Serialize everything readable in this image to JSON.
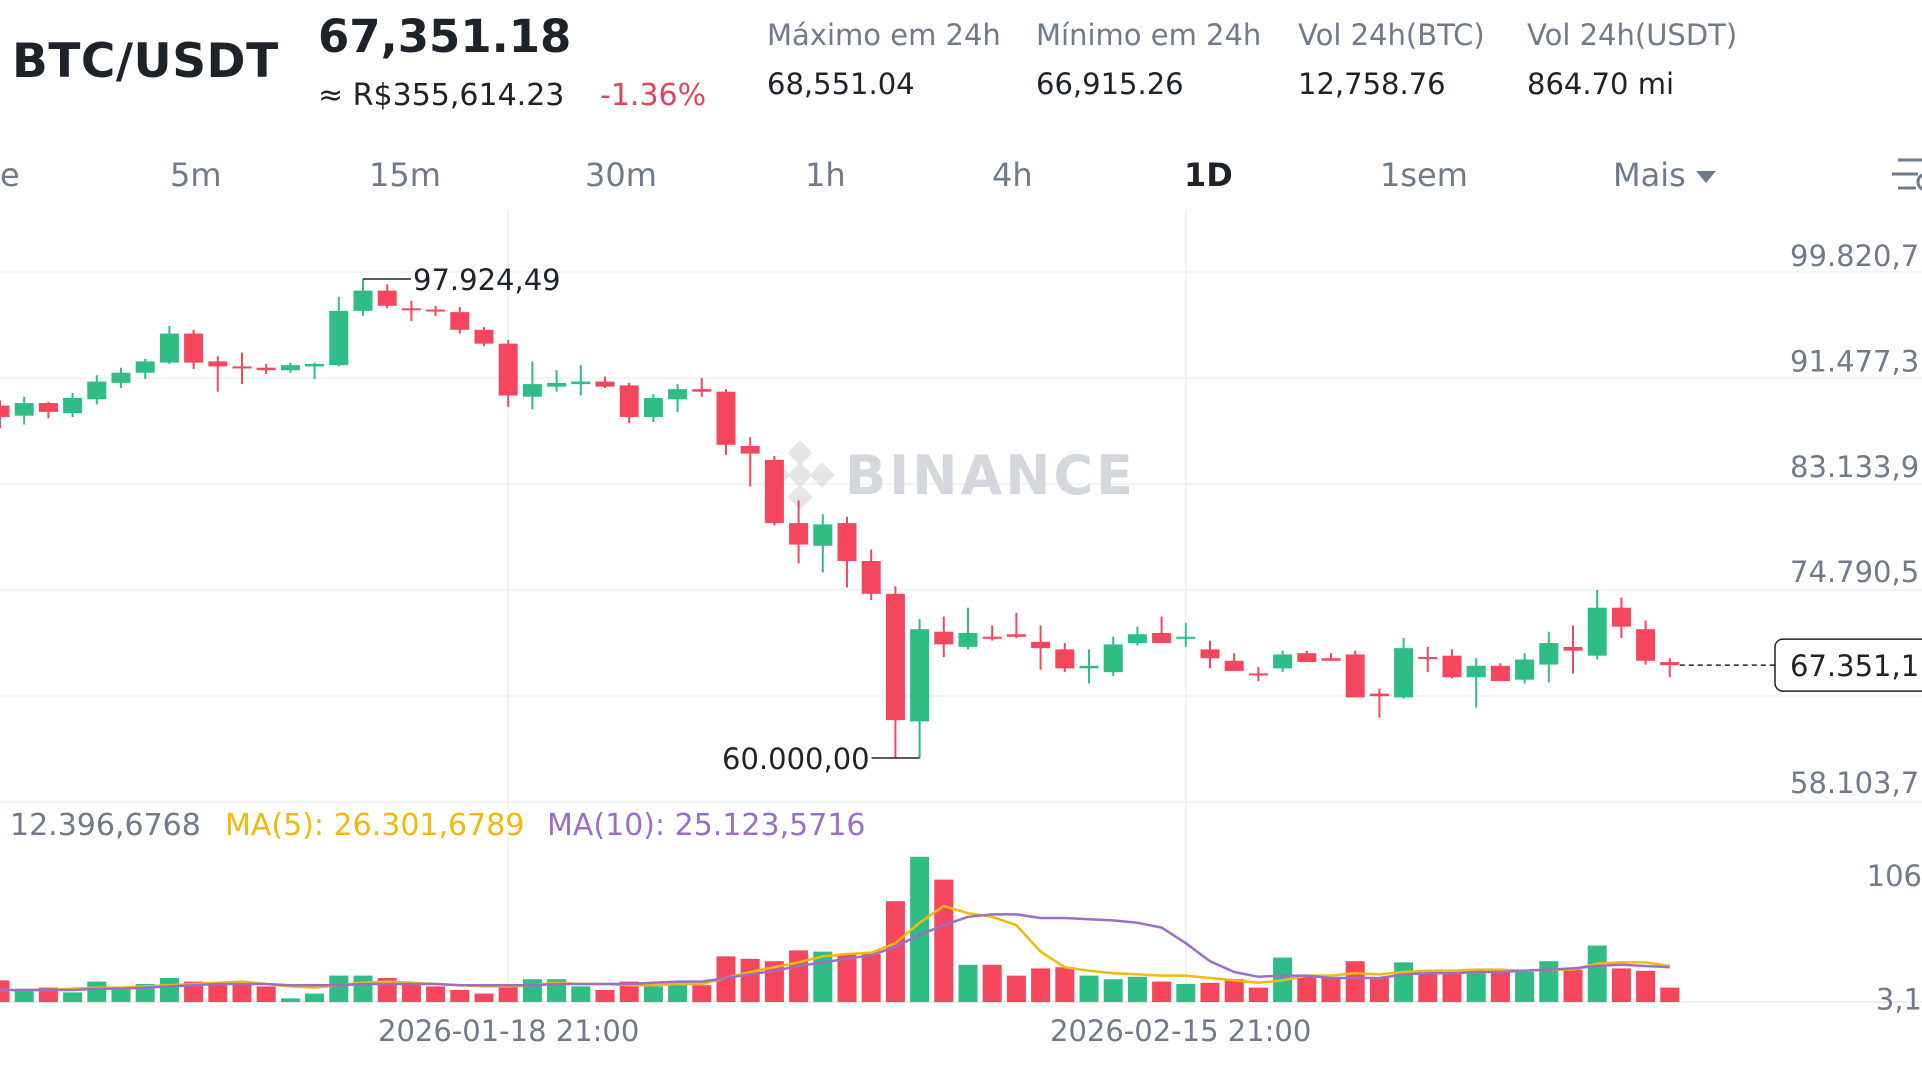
{
  "header": {
    "pair": "BTC/USDT",
    "price": "67,351.18",
    "fiat_price": "≈ R$355,614.23",
    "change": "-1.36%",
    "stats": [
      {
        "label": "Máximo em 24h",
        "value": "68,551.04"
      },
      {
        "label": "Mínimo em 24h",
        "value": "66,915.26"
      },
      {
        "label": "Vol 24h(BTC)",
        "value": "12,758.76"
      },
      {
        "label": "Vol 24h(USDT)",
        "value": "864.70 mi"
      }
    ]
  },
  "timeframes": {
    "items": [
      "e",
      "5m",
      "15m",
      "30m",
      "1h",
      "4h",
      "1D",
      "1sem",
      "Mais"
    ],
    "active": "1D"
  },
  "icons": {
    "settings": "chart-settings-icon",
    "more": "caret-down-icon",
    "watermark": "binance-logo-icon"
  },
  "colors": {
    "up": "#2ebd85",
    "down": "#f6465d",
    "ma5": "#f0b90b",
    "ma10": "#9b6fc9",
    "change": "#e0455f"
  },
  "volume_info": {
    "vol": "12.396,6768",
    "ma5": "MA(5): 26.301,6789",
    "ma10": "MA(10): 25.123,5716"
  },
  "chart_data": {
    "type": "candlestick",
    "price_axis_labels": [
      "99.820,7",
      "91.477,3",
      "83.133,9",
      "74.790,5",
      "58.103,7"
    ],
    "price_axis_values": [
      99820.7,
      91477.3,
      83133.9,
      74790.5,
      58103.7
    ],
    "current_price_label": "67.351,1",
    "current_price": 67351.1,
    "high_annotation": "97.924,49",
    "high_value": 97924.49,
    "low_annotation": "60.000,00",
    "low_value": 60000.0,
    "volume_axis_labels": [
      "106",
      "3,1"
    ],
    "volume_axis_values": [
      106,
      3.1
    ],
    "x_labels": [
      "2026-01-18 21:00",
      "2026-02-15 21:00"
    ],
    "x_label_index": [
      21,
      49
    ],
    "watermark": "BINANCE",
    "candles": [
      [
        87900,
        88300,
        86100,
        87000
      ],
      [
        87100,
        88600,
        86400,
        88100
      ],
      [
        88100,
        88200,
        86900,
        87400
      ],
      [
        87300,
        88900,
        87000,
        88500
      ],
      [
        88400,
        90300,
        88000,
        89800
      ],
      [
        89700,
        90900,
        89300,
        90500
      ],
      [
        90500,
        91600,
        90000,
        91400
      ],
      [
        91300,
        94200,
        91200,
        93600
      ],
      [
        93600,
        93900,
        90800,
        91300
      ],
      [
        91400,
        91800,
        89000,
        91000
      ],
      [
        91000,
        92100,
        89600,
        90900
      ],
      [
        90900,
        91200,
        90400,
        90700
      ],
      [
        90700,
        91300,
        90500,
        91100
      ],
      [
        91000,
        91300,
        90000,
        91200
      ],
      [
        91100,
        96500,
        91000,
        95400
      ],
      [
        95400,
        97924.49,
        95000,
        97000
      ],
      [
        97000,
        97500,
        95600,
        95800
      ],
      [
        95600,
        96200,
        94600,
        95500
      ],
      [
        95500,
        95800,
        95000,
        95400
      ],
      [
        95300,
        95700,
        93600,
        93900
      ],
      [
        93900,
        94100,
        92600,
        92800
      ],
      [
        92800,
        93100,
        87800,
        88700
      ],
      [
        88600,
        91400,
        87600,
        89600
      ],
      [
        89400,
        90700,
        89000,
        89700
      ],
      [
        89600,
        91100,
        88700,
        89800
      ],
      [
        89800,
        90200,
        89300,
        89400
      ],
      [
        89500,
        89700,
        86500,
        87000
      ],
      [
        87000,
        88800,
        86600,
        88500
      ],
      [
        88400,
        89600,
        87400,
        89200
      ],
      [
        89200,
        90100,
        88600,
        89000
      ],
      [
        89000,
        89200,
        84000,
        84800
      ],
      [
        84700,
        85400,
        81500,
        84100
      ],
      [
        83600,
        83900,
        78400,
        78600
      ],
      [
        78600,
        80400,
        75400,
        76900
      ],
      [
        76800,
        79300,
        74700,
        78500
      ],
      [
        78600,
        79100,
        73500,
        75600
      ],
      [
        75600,
        76500,
        72500,
        73000
      ],
      [
        73000,
        73600,
        60000,
        63000
      ],
      [
        62900,
        71000,
        60000,
        70200
      ],
      [
        70000,
        71200,
        68000,
        69000
      ],
      [
        68800,
        71900,
        68600,
        69900
      ],
      [
        69600,
        70500,
        69300,
        69500
      ],
      [
        69800,
        71500,
        69500,
        69600
      ],
      [
        69200,
        70500,
        67000,
        68700
      ],
      [
        68600,
        69100,
        66800,
        67100
      ],
      [
        67100,
        68600,
        65900,
        67300
      ],
      [
        66800,
        69600,
        66500,
        69000
      ],
      [
        69100,
        70400,
        68900,
        69800
      ],
      [
        69900,
        71200,
        69200,
        69100
      ],
      [
        69600,
        70700,
        68800,
        69600
      ],
      [
        68600,
        69300,
        67100,
        67900
      ],
      [
        67700,
        68300,
        67000,
        66900
      ],
      [
        66700,
        67200,
        66100,
        66600
      ],
      [
        67100,
        68500,
        66800,
        68200
      ],
      [
        68300,
        68500,
        67600,
        67600
      ],
      [
        67900,
        68300,
        67700,
        67700
      ],
      [
        68200,
        68500,
        64800,
        64800
      ],
      [
        65100,
        65500,
        63200,
        64900
      ],
      [
        64800,
        69500,
        64700,
        68700
      ],
      [
        68000,
        68800,
        66800,
        67900
      ],
      [
        68100,
        68600,
        66300,
        66400
      ],
      [
        66400,
        67900,
        64000,
        67300
      ],
      [
        67300,
        67500,
        66100,
        66100
      ],
      [
        66200,
        68300,
        65900,
        67800
      ],
      [
        67400,
        70000,
        66000,
        69100
      ],
      [
        68800,
        70500,
        66700,
        68500
      ],
      [
        68100,
        73300,
        67800,
        71900
      ],
      [
        71900,
        72700,
        69500,
        70400
      ],
      [
        70200,
        70900,
        67400,
        67700
      ],
      [
        67600,
        67900,
        66400,
        67351.18
      ]
    ],
    "volumes": [
      18,
      11,
      12,
      8,
      17,
      11,
      15,
      20,
      17,
      16,
      15,
      13,
      3,
      7,
      22,
      22,
      20,
      15,
      13,
      10,
      7,
      15,
      19,
      19,
      13,
      10,
      17,
      13,
      17,
      14,
      38,
      36,
      34,
      43,
      42,
      40,
      40,
      84,
      121,
      102,
      31,
      31,
      22,
      28,
      29,
      22,
      19,
      21,
      17,
      15,
      16,
      19,
      12,
      37,
      22,
      20,
      34,
      20,
      33,
      24,
      24,
      26,
      26,
      25,
      34,
      27,
      47,
      28,
      26,
      12
    ],
    "ma5": [
      10,
      10,
      10,
      11,
      12,
      12,
      13,
      14,
      15,
      16,
      17,
      15,
      13,
      12,
      14,
      16,
      17,
      16,
      15,
      14,
      13,
      13,
      14,
      16,
      15,
      15,
      14,
      14,
      15,
      15,
      20,
      25,
      29,
      33,
      38,
      40,
      41,
      49,
      66,
      80,
      74,
      71,
      64,
      42,
      29,
      26,
      24,
      23,
      22,
      22,
      20,
      18,
      16,
      18,
      22,
      22,
      24,
      23,
      25,
      26,
      26,
      27,
      27,
      26,
      27,
      27,
      32,
      33,
      33,
      30
    ],
    "ma10": [
      10,
      10,
      10,
      10,
      11,
      11,
      12,
      13,
      14,
      15,
      15,
      15,
      14,
      14,
      14,
      15,
      15,
      15,
      15,
      14,
      14,
      14,
      14,
      15,
      15,
      15,
      15,
      16,
      17,
      17,
      20,
      23,
      26,
      30,
      33,
      36,
      39,
      46,
      56,
      64,
      71,
      73,
      73,
      70,
      70,
      69,
      68,
      66,
      62,
      49,
      34,
      25,
      21,
      22,
      22,
      20,
      20,
      20,
      23,
      24,
      24,
      25,
      25,
      26,
      27,
      28,
      30,
      31,
      30,
      29
    ]
  }
}
